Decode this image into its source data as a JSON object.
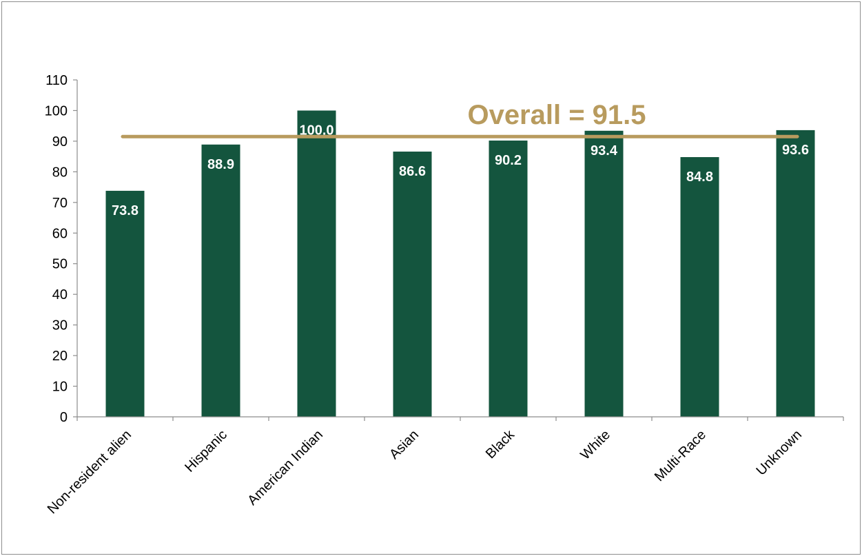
{
  "chart_data": {
    "type": "bar",
    "title": "",
    "xlabel": "",
    "ylabel": "",
    "categories": [
      "Non-resident alien",
      "Hispanic",
      "American Indian",
      "Asian",
      "Black",
      "White",
      "Multi-Race",
      "Unknown"
    ],
    "values": [
      73.8,
      88.9,
      100.0,
      86.6,
      90.2,
      93.4,
      84.8,
      93.6
    ],
    "data_labels": [
      "73.8",
      "88.9",
      "100.0",
      "86.6",
      "90.2",
      "93.4",
      "84.8",
      "93.6"
    ],
    "ylim": [
      0,
      110
    ],
    "yticks": [
      0,
      10,
      20,
      30,
      40,
      50,
      60,
      70,
      80,
      90,
      100,
      110
    ],
    "grid": false,
    "legend": "none",
    "reference_line": {
      "value": 91.5,
      "label": "Overall = 91.5"
    },
    "colors": {
      "bar": "#14553e",
      "reference_line": "#b89b5e",
      "axis": "#8c8c8c"
    }
  }
}
